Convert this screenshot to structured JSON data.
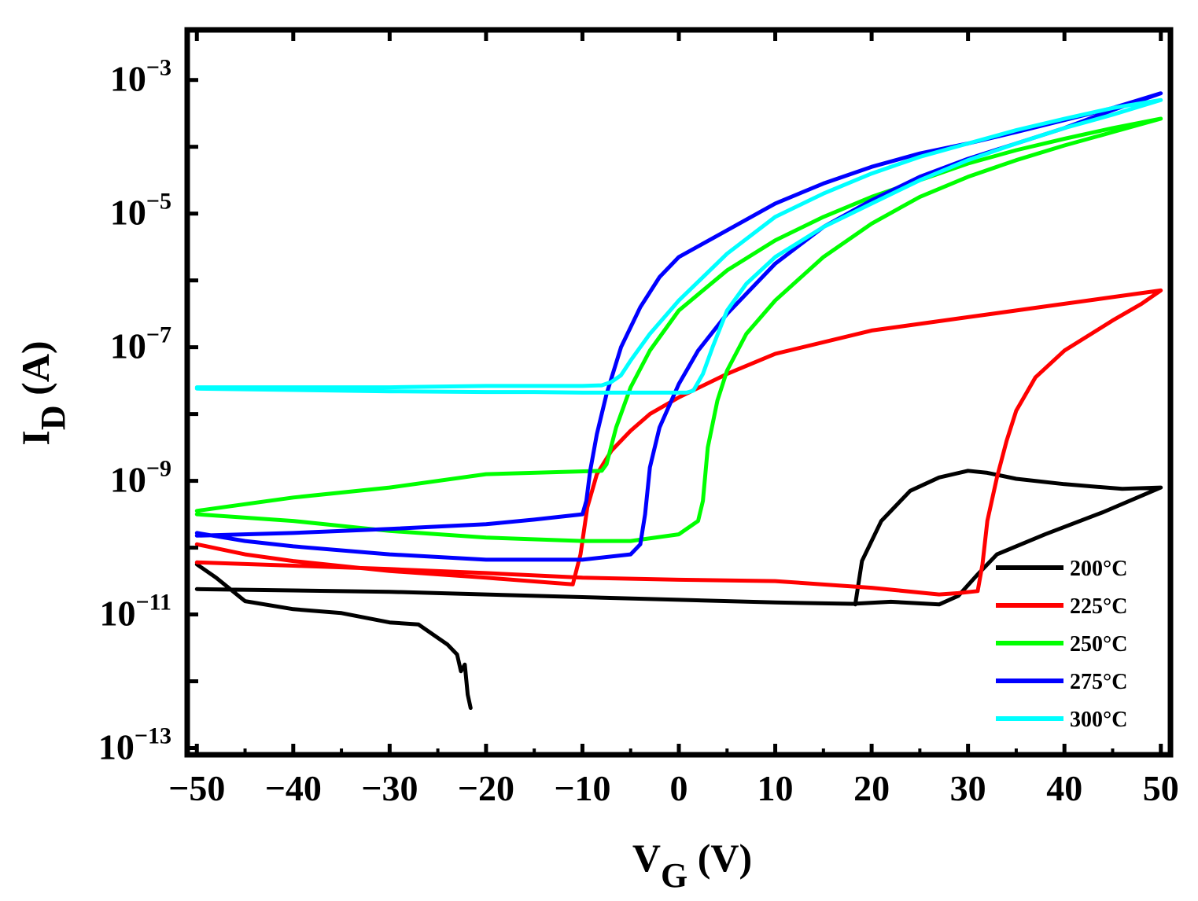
{
  "chart_data": {
    "type": "line",
    "title": "",
    "xlabel": {
      "main": "V",
      "sub": "G",
      "unit": " (V)"
    },
    "ylabel": {
      "main": "I",
      "sub": "D",
      "unit": " (A)"
    },
    "xlim": [
      -51,
      51
    ],
    "ylim_log10": [
      -13.1,
      -2.25
    ],
    "y_scale": "log",
    "x_ticks": [
      -50,
      -40,
      -30,
      -20,
      -10,
      0,
      10,
      20,
      30,
      40,
      50
    ],
    "x_tick_labels": [
      "−50",
      "−40",
      "−30",
      "−20",
      "−10",
      "0",
      "10",
      "20",
      "30",
      "40",
      "50"
    ],
    "y_ticks": [
      {
        "exp": -3,
        "base": "10",
        "sup": "−3"
      },
      {
        "exp": -5,
        "base": "10",
        "sup": "−5"
      },
      {
        "exp": -7,
        "base": "10",
        "sup": "−7"
      },
      {
        "exp": -9,
        "base": "10",
        "sup": "−9"
      },
      {
        "exp": -11,
        "base": "10",
        "sup": "−11"
      },
      {
        "exp": -13,
        "base": "10",
        "sup": "−13"
      }
    ],
    "legend_position": "bottom-right",
    "series": [
      {
        "name": "200°C",
        "color": "#000000",
        "points": [
          [
            -50,
            -10.25
          ],
          [
            -48,
            -10.45
          ],
          [
            -45,
            -10.8
          ],
          [
            -40,
            -10.92
          ],
          [
            -35,
            -10.98
          ],
          [
            -30,
            -11.12
          ],
          [
            -27,
            -11.15
          ],
          [
            -25,
            -11.35
          ],
          [
            -24,
            -11.45
          ],
          [
            -23,
            -11.6
          ],
          [
            -22.6,
            -11.85
          ],
          [
            -22.2,
            -11.75
          ],
          [
            -21.9,
            -12.2
          ],
          [
            -21.6,
            -12.4
          ],
          null,
          [
            -50,
            -10.62
          ],
          [
            -40,
            -10.64
          ],
          [
            -30,
            -10.66
          ],
          [
            -20,
            -10.7
          ],
          [
            -10,
            -10.74
          ],
          [
            0,
            -10.78
          ],
          [
            10,
            -10.82
          ],
          [
            18,
            -10.84
          ],
          [
            22,
            -10.81
          ],
          [
            27,
            -10.85
          ],
          [
            29,
            -10.72
          ],
          [
            31,
            -10.4
          ],
          [
            33,
            -10.1
          ],
          [
            38,
            -9.8
          ],
          [
            44,
            -9.47
          ],
          [
            50,
            -9.1
          ],
          [
            46,
            -9.12
          ],
          [
            40,
            -9.05
          ],
          [
            35,
            -8.97
          ],
          [
            32,
            -8.88
          ],
          [
            30,
            -8.85
          ],
          [
            27,
            -8.95
          ],
          [
            24,
            -9.15
          ],
          [
            21,
            -9.6
          ],
          [
            19,
            -10.2
          ],
          [
            18.3,
            -10.85
          ]
        ]
      },
      {
        "name": "225°C",
        "color": "#ff0000",
        "points": [
          [
            -50,
            -9.95
          ],
          [
            -45,
            -10.1
          ],
          [
            -40,
            -10.2
          ],
          [
            -30,
            -10.35
          ],
          [
            -20,
            -10.45
          ],
          [
            -11,
            -10.55
          ],
          [
            -10.2,
            -10.1
          ],
          [
            -9.5,
            -9.4
          ],
          [
            -8.5,
            -8.9
          ],
          [
            -7,
            -8.55
          ],
          [
            -5,
            -8.25
          ],
          [
            -3,
            -8.0
          ],
          [
            0,
            -7.75
          ],
          [
            5,
            -7.4
          ],
          [
            10,
            -7.1
          ],
          [
            20,
            -6.75
          ],
          [
            30,
            -6.55
          ],
          [
            40,
            -6.35
          ],
          [
            50,
            -6.15
          ],
          [
            48,
            -6.35
          ],
          [
            45,
            -6.6
          ],
          [
            40,
            -7.05
          ],
          [
            37,
            -7.45
          ],
          [
            35,
            -7.95
          ],
          [
            34,
            -8.4
          ],
          [
            33,
            -8.95
          ],
          [
            32,
            -9.6
          ],
          [
            31.5,
            -10.25
          ],
          [
            31,
            -10.65
          ],
          [
            29,
            -10.68
          ],
          [
            27,
            -10.7
          ],
          [
            20,
            -10.6
          ],
          [
            10,
            -10.5
          ],
          [
            0,
            -10.48
          ],
          [
            -10,
            -10.45
          ],
          [
            -20,
            -10.38
          ],
          [
            -30,
            -10.32
          ],
          [
            -40,
            -10.27
          ],
          [
            -50,
            -10.22
          ]
        ]
      },
      {
        "name": "250°C",
        "color": "#00ff00",
        "points": [
          [
            -50,
            -9.5
          ],
          [
            -40,
            -9.6
          ],
          [
            -30,
            -9.75
          ],
          [
            -20,
            -9.85
          ],
          [
            -10,
            -9.9
          ],
          [
            -5,
            -9.9
          ],
          [
            0,
            -9.8
          ],
          [
            2,
            -9.6
          ],
          [
            2.5,
            -9.3
          ],
          [
            3,
            -8.5
          ],
          [
            4,
            -7.8
          ],
          [
            5,
            -7.35
          ],
          [
            7,
            -6.8
          ],
          [
            10,
            -6.3
          ],
          [
            15,
            -5.65
          ],
          [
            20,
            -5.15
          ],
          [
            25,
            -4.75
          ],
          [
            30,
            -4.45
          ],
          [
            35,
            -4.2
          ],
          [
            40,
            -3.98
          ],
          [
            45,
            -3.78
          ],
          [
            50,
            -3.58
          ],
          [
            45,
            -3.72
          ],
          [
            40,
            -3.88
          ],
          [
            35,
            -4.05
          ],
          [
            30,
            -4.25
          ],
          [
            25,
            -4.5
          ],
          [
            20,
            -4.75
          ],
          [
            15,
            -5.05
          ],
          [
            10,
            -5.4
          ],
          [
            5,
            -5.85
          ],
          [
            0,
            -6.45
          ],
          [
            -3,
            -7.05
          ],
          [
            -5,
            -7.6
          ],
          [
            -6.5,
            -8.2
          ],
          [
            -7.5,
            -8.75
          ],
          [
            -8,
            -8.85
          ],
          [
            -20,
            -8.9
          ],
          [
            -30,
            -9.1
          ],
          [
            -40,
            -9.25
          ],
          [
            -50,
            -9.45
          ]
        ]
      },
      {
        "name": "275°C",
        "color": "#0000ff",
        "points": [
          [
            -50,
            -9.78
          ],
          [
            -45,
            -9.9
          ],
          [
            -40,
            -9.98
          ],
          [
            -30,
            -10.1
          ],
          [
            -20,
            -10.18
          ],
          [
            -10,
            -10.18
          ],
          [
            -5,
            -10.1
          ],
          [
            -4,
            -9.95
          ],
          [
            -3.5,
            -9.5
          ],
          [
            -3,
            -8.8
          ],
          [
            -2,
            -8.2
          ],
          [
            0,
            -7.55
          ],
          [
            2,
            -7.05
          ],
          [
            5,
            -6.5
          ],
          [
            10,
            -5.75
          ],
          [
            15,
            -5.2
          ],
          [
            20,
            -4.8
          ],
          [
            25,
            -4.45
          ],
          [
            30,
            -4.18
          ],
          [
            35,
            -3.95
          ],
          [
            40,
            -3.72
          ],
          [
            45,
            -3.45
          ],
          [
            50,
            -3.2
          ],
          [
            45,
            -3.42
          ],
          [
            40,
            -3.6
          ],
          [
            35,
            -3.78
          ],
          [
            30,
            -3.95
          ],
          [
            25,
            -4.1
          ],
          [
            20,
            -4.3
          ],
          [
            15,
            -4.55
          ],
          [
            10,
            -4.85
          ],
          [
            5,
            -5.25
          ],
          [
            0,
            -5.65
          ],
          [
            -2,
            -5.95
          ],
          [
            -4,
            -6.4
          ],
          [
            -6,
            -7.0
          ],
          [
            -7.5,
            -7.7
          ],
          [
            -8.5,
            -8.3
          ],
          [
            -9.2,
            -8.85
          ],
          [
            -9.6,
            -9.3
          ],
          [
            -10,
            -9.5
          ],
          [
            -15,
            -9.58
          ],
          [
            -20,
            -9.65
          ],
          [
            -30,
            -9.72
          ],
          [
            -40,
            -9.78
          ],
          [
            -50,
            -9.82
          ]
        ]
      },
      {
        "name": "300°C",
        "color": "#00ffff",
        "points": [
          [
            -50,
            -7.6
          ],
          [
            -40,
            -7.6
          ],
          [
            -30,
            -7.6
          ],
          [
            -20,
            -7.58
          ],
          [
            -10,
            -7.58
          ],
          [
            -8,
            -7.57
          ],
          [
            -7,
            -7.52
          ],
          [
            -6,
            -7.42
          ],
          [
            -5,
            -7.2
          ],
          [
            -3,
            -6.8
          ],
          [
            0,
            -6.3
          ],
          [
            5,
            -5.6
          ],
          [
            10,
            -5.05
          ],
          [
            15,
            -4.7
          ],
          [
            20,
            -4.4
          ],
          [
            25,
            -4.15
          ],
          [
            30,
            -3.95
          ],
          [
            35,
            -3.75
          ],
          [
            40,
            -3.58
          ],
          [
            45,
            -3.42
          ],
          [
            50,
            -3.3
          ],
          [
            45,
            -3.52
          ],
          [
            40,
            -3.72
          ],
          [
            35,
            -3.95
          ],
          [
            30,
            -4.2
          ],
          [
            25,
            -4.5
          ],
          [
            20,
            -4.85
          ],
          [
            15,
            -5.2
          ],
          [
            10,
            -5.65
          ],
          [
            7,
            -6.05
          ],
          [
            5,
            -6.45
          ],
          [
            3.5,
            -7.0
          ],
          [
            2.5,
            -7.4
          ],
          [
            1.5,
            -7.65
          ],
          [
            0.8,
            -7.68
          ],
          [
            -5,
            -7.68
          ],
          [
            -10,
            -7.68
          ],
          [
            -15,
            -7.67
          ],
          [
            -20,
            -7.67
          ],
          [
            -30,
            -7.66
          ],
          [
            -40,
            -7.64
          ],
          [
            -50,
            -7.62
          ]
        ]
      }
    ]
  }
}
